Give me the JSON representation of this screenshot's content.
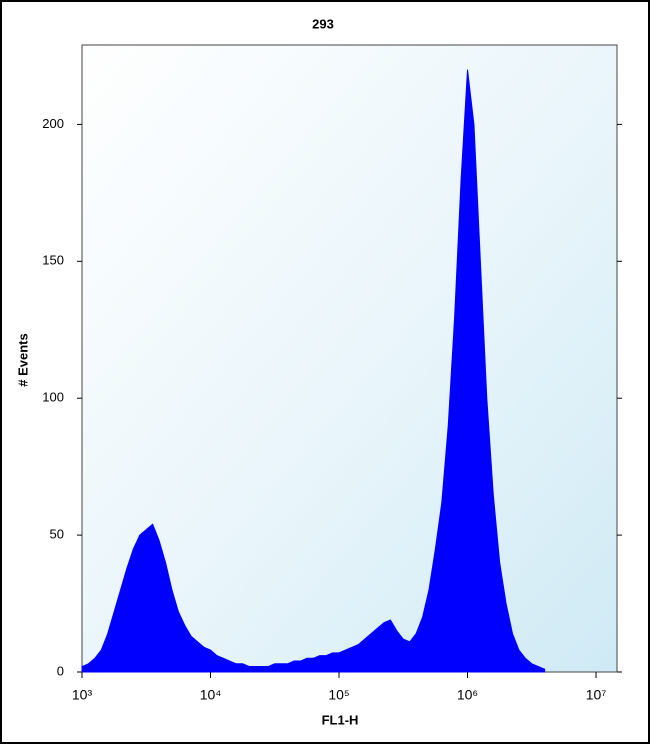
{
  "chart_data": {
    "type": "area",
    "title": "293",
    "xlabel": "FL1-H",
    "ylabel": "# Events",
    "xscale": "log",
    "color": "#0000ff",
    "xlim": [
      1000,
      14560000
    ],
    "xticks": [
      {
        "value": 1000,
        "label": "10³"
      },
      {
        "value": 10000,
        "label": "10⁴"
      },
      {
        "value": 100000,
        "label": "10⁵"
      },
      {
        "value": 1000000,
        "label": "10⁶"
      },
      {
        "value": 10000000,
        "label": "10⁷"
      }
    ],
    "ylim": [
      0,
      229
    ],
    "yticks": [
      0,
      50,
      100,
      150,
      200
    ],
    "x": [
      1000,
      1122,
      1259,
      1413,
      1585,
      1778,
      1995,
      2239,
      2512,
      2818,
      3162,
      3548,
      3981,
      4467,
      5012,
      5623,
      6310,
      7079,
      7943,
      8913,
      10000,
      11220,
      12589,
      14125,
      15849,
      17783,
      19953,
      22387,
      25119,
      28184,
      31623,
      35481,
      39811,
      44668,
      50119,
      56234,
      63096,
      70795,
      79433,
      89125,
      100000,
      112202,
      125893,
      141254,
      158489,
      177828,
      199526,
      223872,
      251189,
      281838,
      316228,
      354813,
      398107,
      446684,
      501187,
      562341,
      630957,
      707946,
      794328,
      891251,
      1000000,
      1122018,
      1258925,
      1412538,
      1584893,
      1778279,
      1995262,
      2238721,
      2511886,
      2818383,
      3162278,
      3548134,
      3981072
    ],
    "values": [
      2,
      3,
      5,
      8,
      14,
      22,
      30,
      38,
      45,
      50,
      52,
      54,
      48,
      40,
      30,
      22,
      17,
      13,
      11,
      9,
      8,
      6,
      5,
      4,
      3,
      3,
      2,
      2,
      2,
      2,
      3,
      3,
      3,
      4,
      4,
      5,
      5,
      6,
      6,
      7,
      7,
      8,
      9,
      10,
      12,
      14,
      16,
      18,
      19,
      15,
      12,
      11,
      14,
      20,
      30,
      45,
      62,
      90,
      130,
      180,
      220,
      200,
      150,
      100,
      65,
      40,
      25,
      14,
      8,
      5,
      3,
      2,
      1
    ]
  }
}
